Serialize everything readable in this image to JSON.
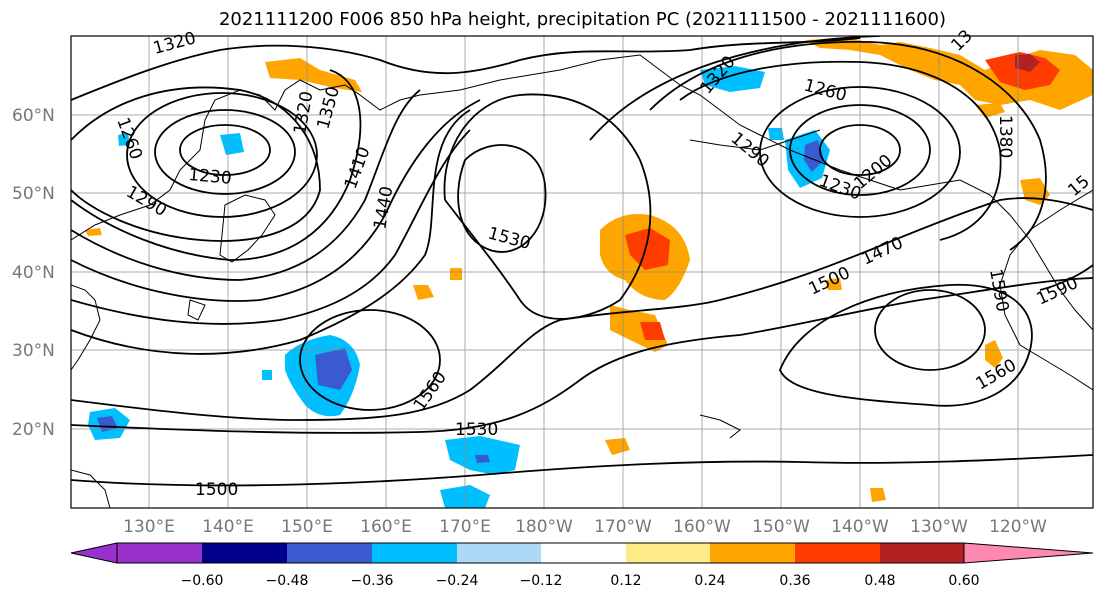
{
  "title": "2021111200 F006 850 hPa height, precipitation PC (2021111500 - 2021111600)",
  "lat_labels": [
    "60°N",
    "50°N",
    "40°N",
    "30°N",
    "20°N"
  ],
  "lon_labels": [
    "130°E",
    "140°E",
    "150°E",
    "160°E",
    "170°E",
    "180°W",
    "170°W",
    "160°W",
    "150°W",
    "140°W",
    "130°W",
    "120°W"
  ],
  "contour_labels": [
    "1320",
    "1260",
    "1320",
    "1350",
    "1230",
    "1290",
    "1410",
    "1440",
    "1530",
    "1320",
    "1260",
    "1290",
    "1230",
    "1200",
    "1470",
    "1500",
    "1380",
    "1590",
    "1590",
    "1560",
    "1560",
    "1530",
    "1500",
    "13",
    "15"
  ],
  "colorbar": {
    "ticks": [
      "−0.60",
      "−0.48",
      "−0.36",
      "−0.24",
      "−0.12",
      "0.12",
      "0.24",
      "0.36",
      "0.48",
      "0.60"
    ],
    "colors": [
      "#9932cc",
      "#00008b",
      "#3a5bcf",
      "#00bfff",
      "#add8f8",
      "#ffffff",
      "#ffea88",
      "#ffa500",
      "#ff3c00",
      "#b22222",
      "#ff88b0"
    ]
  },
  "map_data": {
    "field": "850 hPa height",
    "shading": "precipitation PC",
    "lat_range": [
      "20°N",
      "60°N"
    ],
    "lon_range": [
      "130°E",
      "120°W"
    ]
  }
}
